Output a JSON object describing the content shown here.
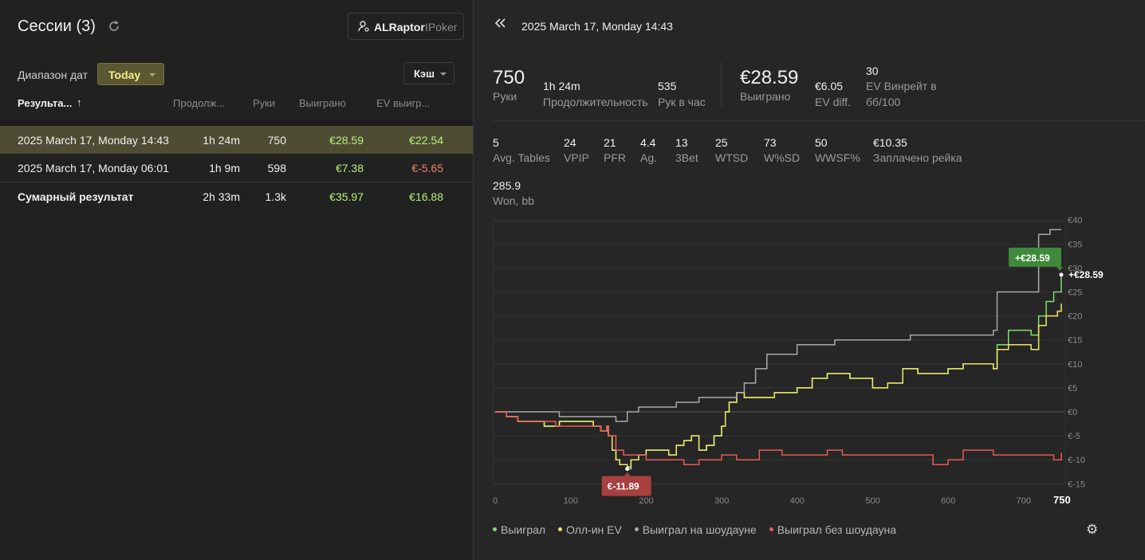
{
  "left": {
    "title": "Сессии (3)",
    "user": {
      "name": "ALRaptor",
      "site": "IPoker"
    },
    "date_range_label": "Диапазон дат",
    "date_range_value": "Today",
    "game_type": "Кэш",
    "columns": {
      "result": "Результа...",
      "duration": "Продолж...",
      "hands": "Руки",
      "won": "Выиграно",
      "ev": "EV выигр..."
    },
    "rows": [
      {
        "name": "2025 March 17, Monday 14:43",
        "duration": "1h 24m",
        "hands": "750",
        "won": "€28.59",
        "ev": "€22.54"
      },
      {
        "name": "2025 March 17, Monday 06:01",
        "duration": "1h 9m",
        "hands": "598",
        "won": "€7.38",
        "ev": "€-5.65"
      }
    ],
    "total": {
      "name": "Сумарный результат",
      "duration": "2h 33m",
      "hands": "1.3k",
      "won": "€35.97",
      "ev": "€16.88"
    }
  },
  "right": {
    "session_title": "2025 March 17, Monday 14:43",
    "summary": {
      "hands": "750",
      "hands_label": "Руки",
      "duration": "1h 24m",
      "duration_label": "Продолжительность",
      "hands_per_hour": "535",
      "hands_per_hour_label": "Рук в час",
      "won": "€28.59",
      "won_label": "Выиграно",
      "ev_diff": "€6.05",
      "ev_diff_label": "EV diff.",
      "ev_winrate": "30",
      "ev_winrate_label_1": "EV Винрейт в",
      "ev_winrate_label_2": "бб/100"
    },
    "stats": [
      {
        "value": "5",
        "label": "Avg. Tables"
      },
      {
        "value": "24",
        "label": "VPIP"
      },
      {
        "value": "21",
        "label": "PFR"
      },
      {
        "value": "4.4",
        "label": "Ag."
      },
      {
        "value": "13",
        "label": "3Bet"
      },
      {
        "value": "25",
        "label": "WTSD"
      },
      {
        "value": "73",
        "label": "W%SD"
      },
      {
        "value": "50",
        "label": "WWSF%"
      },
      {
        "value": "€10.35",
        "label": "Заплачено рейка"
      }
    ],
    "won_bb": {
      "value": "285.9",
      "label": "Won, bb"
    }
  },
  "chart_data": {
    "type": "line",
    "x_ticks": [
      "0",
      "100",
      "200",
      "300",
      "400",
      "500",
      "600",
      "700",
      "750"
    ],
    "y_ticks": [
      "€40",
      "€35",
      "€30",
      "€25",
      "€20",
      "€15",
      "€10",
      "€5",
      "€0",
      "€-5",
      "€-10",
      "€-15"
    ],
    "xlim": [
      0,
      750
    ],
    "ylim": [
      -15,
      40
    ],
    "series": [
      {
        "name": "Выиграл",
        "color": "#7ee06e",
        "points": [
          [
            0,
            0
          ],
          [
            15,
            -1
          ],
          [
            30,
            -2
          ],
          [
            60,
            -2
          ],
          [
            65,
            -3
          ],
          [
            80,
            -3
          ],
          [
            85,
            -2
          ],
          [
            100,
            -2
          ],
          [
            130,
            -3
          ],
          [
            140,
            -4
          ],
          [
            148,
            -3
          ],
          [
            150,
            -5
          ],
          [
            155,
            -8
          ],
          [
            160,
            -10
          ],
          [
            165,
            -11
          ],
          [
            175,
            -11.89
          ],
          [
            180,
            -10
          ],
          [
            190,
            -9
          ],
          [
            200,
            -8
          ],
          [
            220,
            -8
          ],
          [
            230,
            -9
          ],
          [
            240,
            -7
          ],
          [
            250,
            -6
          ],
          [
            260,
            -5
          ],
          [
            270,
            -8
          ],
          [
            280,
            -7
          ],
          [
            290,
            -5
          ],
          [
            300,
            -3
          ],
          [
            305,
            0
          ],
          [
            310,
            2
          ],
          [
            320,
            4
          ],
          [
            330,
            3
          ],
          [
            350,
            3
          ],
          [
            370,
            4
          ],
          [
            400,
            5
          ],
          [
            420,
            7
          ],
          [
            440,
            8
          ],
          [
            470,
            7
          ],
          [
            500,
            5
          ],
          [
            520,
            6
          ],
          [
            540,
            9
          ],
          [
            560,
            8
          ],
          [
            600,
            9
          ],
          [
            620,
            10
          ],
          [
            660,
            9
          ],
          [
            665,
            14
          ],
          [
            680,
            17
          ],
          [
            710,
            16
          ],
          [
            720,
            20
          ],
          [
            730,
            23
          ],
          [
            740,
            25
          ],
          [
            750,
            28.59
          ]
        ]
      },
      {
        "name": "Олл-ин EV",
        "color": "#efe56a",
        "points": [
          [
            0,
            0
          ],
          [
            15,
            -1
          ],
          [
            30,
            -2
          ],
          [
            60,
            -2
          ],
          [
            65,
            -3
          ],
          [
            80,
            -3
          ],
          [
            85,
            -2
          ],
          [
            100,
            -2
          ],
          [
            130,
            -3
          ],
          [
            140,
            -4
          ],
          [
            148,
            -3
          ],
          [
            150,
            -5
          ],
          [
            155,
            -8
          ],
          [
            160,
            -10
          ],
          [
            165,
            -11
          ],
          [
            175,
            -11.5
          ],
          [
            180,
            -10
          ],
          [
            190,
            -9
          ],
          [
            200,
            -8
          ],
          [
            220,
            -8
          ],
          [
            230,
            -9
          ],
          [
            240,
            -7
          ],
          [
            250,
            -6
          ],
          [
            260,
            -5
          ],
          [
            270,
            -8
          ],
          [
            280,
            -7
          ],
          [
            290,
            -5
          ],
          [
            300,
            -3
          ],
          [
            305,
            0
          ],
          [
            310,
            2
          ],
          [
            320,
            4
          ],
          [
            330,
            3
          ],
          [
            350,
            3
          ],
          [
            370,
            4
          ],
          [
            400,
            5
          ],
          [
            420,
            7
          ],
          [
            440,
            8
          ],
          [
            470,
            7
          ],
          [
            500,
            5
          ],
          [
            520,
            6
          ],
          [
            540,
            9
          ],
          [
            560,
            8
          ],
          [
            600,
            9
          ],
          [
            620,
            10
          ],
          [
            660,
            9
          ],
          [
            665,
            13
          ],
          [
            680,
            14
          ],
          [
            710,
            13
          ],
          [
            720,
            18
          ],
          [
            730,
            20
          ],
          [
            745,
            21
          ],
          [
            750,
            22.54
          ]
        ]
      },
      {
        "name": "Выиграл на шоудауне",
        "color": "#a8a8a8",
        "points": [
          [
            0,
            0
          ],
          [
            60,
            0
          ],
          [
            85,
            -1
          ],
          [
            100,
            -1
          ],
          [
            150,
            -1
          ],
          [
            160,
            -2
          ],
          [
            170,
            -2
          ],
          [
            175,
            0
          ],
          [
            190,
            1
          ],
          [
            220,
            1
          ],
          [
            240,
            2
          ],
          [
            270,
            3
          ],
          [
            300,
            3
          ],
          [
            320,
            4
          ],
          [
            330,
            6
          ],
          [
            345,
            9
          ],
          [
            360,
            12
          ],
          [
            400,
            14
          ],
          [
            450,
            15
          ],
          [
            500,
            15
          ],
          [
            550,
            16
          ],
          [
            600,
            16
          ],
          [
            660,
            17
          ],
          [
            665,
            25
          ],
          [
            700,
            25
          ],
          [
            720,
            37
          ],
          [
            735,
            38
          ],
          [
            750,
            38
          ]
        ]
      },
      {
        "name": "Выиграл без шоудауна",
        "color": "#e85a54",
        "points": [
          [
            0,
            0
          ],
          [
            15,
            -1
          ],
          [
            30,
            -2
          ],
          [
            60,
            -2
          ],
          [
            80,
            -3
          ],
          [
            100,
            -3
          ],
          [
            130,
            -3
          ],
          [
            140,
            -4
          ],
          [
            148,
            -3
          ],
          [
            150,
            -5
          ],
          [
            160,
            -8
          ],
          [
            170,
            -9
          ],
          [
            180,
            -9
          ],
          [
            200,
            -10
          ],
          [
            230,
            -10
          ],
          [
            250,
            -11
          ],
          [
            270,
            -10
          ],
          [
            290,
            -10
          ],
          [
            300,
            -9
          ],
          [
            320,
            -10
          ],
          [
            350,
            -8
          ],
          [
            380,
            -9
          ],
          [
            400,
            -9
          ],
          [
            440,
            -8
          ],
          [
            460,
            -9
          ],
          [
            500,
            -9
          ],
          [
            550,
            -9
          ],
          [
            580,
            -11
          ],
          [
            600,
            -10
          ],
          [
            620,
            -8
          ],
          [
            660,
            -9
          ],
          [
            700,
            -9
          ],
          [
            740,
            -10
          ],
          [
            750,
            -8.5
          ]
        ]
      }
    ],
    "annotations": [
      {
        "text": "+€28.59",
        "color": "#3f8a3a"
      },
      {
        "text": "+€28.59"
      },
      {
        "text": "€-11.89",
        "color": "#a84040"
      }
    ]
  },
  "legend": [
    "Выиграл",
    "Олл-ин EV",
    "Выиграл на шоудауне",
    "Выиграл без шоудауна"
  ]
}
